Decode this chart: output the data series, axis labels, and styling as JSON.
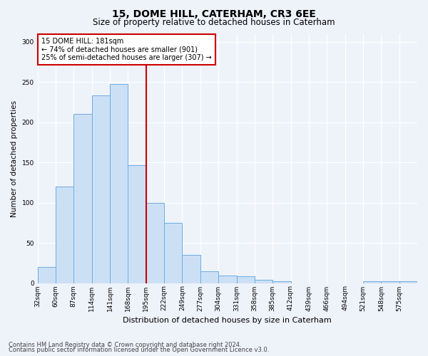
{
  "title1": "15, DOME HILL, CATERHAM, CR3 6EE",
  "title2": "Size of property relative to detached houses in Caterham",
  "xlabel": "Distribution of detached houses by size in Caterham",
  "ylabel": "Number of detached properties",
  "bar_labels": [
    "32sqm",
    "60sqm",
    "87sqm",
    "114sqm",
    "141sqm",
    "168sqm",
    "195sqm",
    "222sqm",
    "249sqm",
    "277sqm",
    "304sqm",
    "331sqm",
    "358sqm",
    "385sqm",
    "412sqm",
    "439sqm",
    "466sqm",
    "494sqm",
    "521sqm",
    "548sqm",
    "575sqm"
  ],
  "hist_values": [
    20,
    120,
    210,
    233,
    248,
    147,
    100,
    75,
    35,
    15,
    9,
    8,
    4,
    2,
    0,
    0,
    0,
    0,
    2,
    2,
    2
  ],
  "bar_color": "#cce0f5",
  "bar_edge_color": "#6aade4",
  "vline_index": 6,
  "vline_color": "#cc0000",
  "annotation_line1": "15 DOME HILL: 181sqm",
  "annotation_line2": "← 74% of detached houses are smaller (901)",
  "annotation_line3": "25% of semi-detached houses are larger (307) →",
  "annotation_box_color": "#ffffff",
  "annotation_box_edge": "#cc0000",
  "ylim": [
    0,
    310
  ],
  "yticks": [
    0,
    50,
    100,
    150,
    200,
    250,
    300
  ],
  "footnote1": "Contains HM Land Registry data © Crown copyright and database right 2024.",
  "footnote2": "Contains public sector information licensed under the Open Government Licence v3.0.",
  "bg_color": "#eef2f9",
  "plot_bg_color": "#eef2f9",
  "title1_fontsize": 10,
  "title2_fontsize": 8.5,
  "xlabel_fontsize": 8,
  "ylabel_fontsize": 7.5,
  "tick_fontsize": 6.5,
  "footnote_fontsize": 6
}
